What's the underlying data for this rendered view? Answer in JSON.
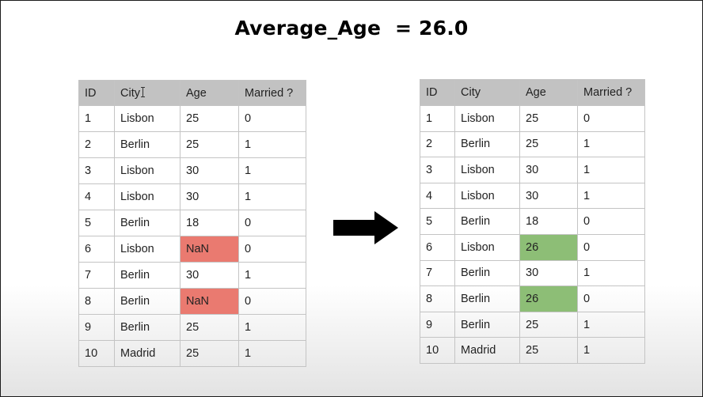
{
  "title": "Average_Age  = 26.0",
  "headers": [
    "ID",
    "City",
    "Age",
    "Married ?"
  ],
  "before_rows": [
    [
      "1",
      "Lisbon",
      "25",
      "0"
    ],
    [
      "2",
      "Berlin",
      "25",
      "1"
    ],
    [
      "3",
      "Lisbon",
      "30",
      "1"
    ],
    [
      "4",
      "Lisbon",
      "30",
      "1"
    ],
    [
      "5",
      "Berlin",
      "18",
      "0"
    ],
    [
      "6",
      "Lisbon",
      "NaN",
      "0"
    ],
    [
      "7",
      "Berlin",
      "30",
      "1"
    ],
    [
      "8",
      "Berlin",
      "NaN",
      "0"
    ],
    [
      "9",
      "Berlin",
      "25",
      "1"
    ],
    [
      "10",
      "Madrid",
      "25",
      "1"
    ]
  ],
  "after_rows": [
    [
      "1",
      "Lisbon",
      "25",
      "0"
    ],
    [
      "2",
      "Berlin",
      "25",
      "1"
    ],
    [
      "3",
      "Lisbon",
      "30",
      "1"
    ],
    [
      "4",
      "Lisbon",
      "30",
      "1"
    ],
    [
      "5",
      "Berlin",
      "18",
      "0"
    ],
    [
      "6",
      "Lisbon",
      "26",
      "0"
    ],
    [
      "7",
      "Berlin",
      "30",
      "1"
    ],
    [
      "8",
      "Berlin",
      "26",
      "0"
    ],
    [
      "9",
      "Berlin",
      "25",
      "1"
    ],
    [
      "10",
      "Madrid",
      "25",
      "1"
    ]
  ],
  "colors": {
    "missing_highlight": "#ea7a70",
    "filled_highlight": "#8dbe76",
    "header_background": "#c2c2c2"
  },
  "icons": {
    "arrow": "right-arrow-icon",
    "cursor": "text-cursor-icon"
  }
}
